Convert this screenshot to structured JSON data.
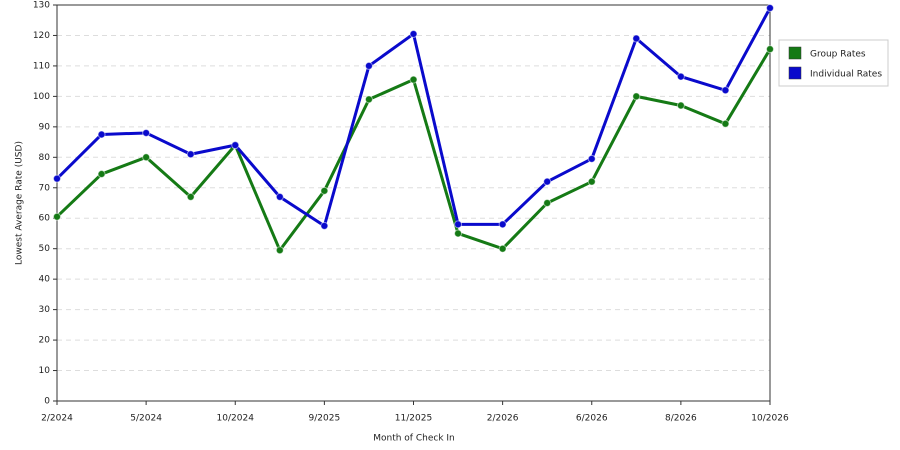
{
  "chart_data": {
    "type": "line",
    "x_label": "Month of Check In",
    "y_label": "Lowest Average Rate (USD)",
    "categories": [
      "2/2024",
      null,
      "5/2024",
      null,
      "10/2024",
      null,
      "9/2025",
      null,
      "11/2025",
      null,
      "2/2026",
      null,
      "6/2026",
      null,
      "8/2026",
      null,
      "10/2026"
    ],
    "series": [
      {
        "name": "Group Rates",
        "color": "#157a15",
        "values": [
          60.5,
          74.5,
          80,
          67,
          84,
          49.5,
          69,
          99,
          105.5,
          55,
          50,
          65,
          72,
          100,
          97,
          91,
          115.5
        ]
      },
      {
        "name": "Individual Rates",
        "color": "#0a0acc",
        "values": [
          73,
          87.5,
          88,
          81,
          84,
          67,
          57.5,
          110,
          120.5,
          58,
          58,
          72,
          79.5,
          119,
          106.5,
          102,
          129
        ]
      }
    ],
    "ylim": [
      0,
      130
    ],
    "yticks": [
      0,
      10,
      20,
      30,
      40,
      50,
      60,
      70,
      80,
      90,
      100,
      110,
      120,
      130
    ],
    "grid": true,
    "legend": "right"
  }
}
